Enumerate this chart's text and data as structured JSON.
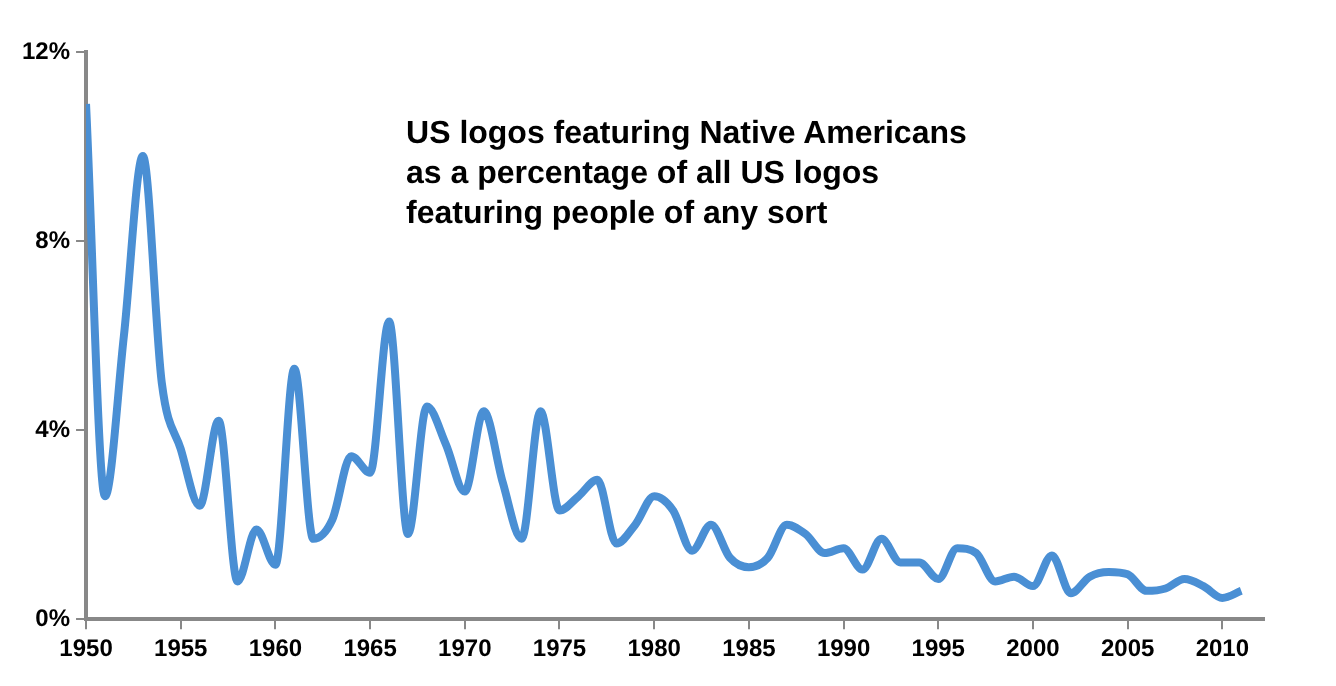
{
  "chart_data": {
    "type": "line",
    "title": "US logos featuring Native Americans\nas a percentage of all US logos\nfeaturing people of any sort",
    "x": [
      1950,
      1951,
      1952,
      1953,
      1954,
      1955,
      1956,
      1957,
      1958,
      1959,
      1960,
      1961,
      1962,
      1963,
      1964,
      1965,
      1966,
      1967,
      1968,
      1969,
      1970,
      1971,
      1972,
      1973,
      1974,
      1975,
      1976,
      1977,
      1978,
      1979,
      1980,
      1981,
      1982,
      1983,
      1984,
      1985,
      1986,
      1987,
      1988,
      1989,
      1990,
      1991,
      1992,
      1993,
      1994,
      1995,
      1996,
      1997,
      1998,
      1999,
      2000,
      2001,
      2002,
      2003,
      2004,
      2005,
      2006,
      2007,
      2008,
      2009,
      2010,
      2011
    ],
    "series": [
      {
        "color": "#4a8fd4",
        "values": [
          10.9,
          2.6,
          6.0,
          9.8,
          5.0,
          3.6,
          2.4,
          4.2,
          0.8,
          1.9,
          1.15,
          5.3,
          1.7,
          2.1,
          3.45,
          3.1,
          6.3,
          1.8,
          4.5,
          3.7,
          2.7,
          4.4,
          2.9,
          1.7,
          4.4,
          2.3,
          2.6,
          2.95,
          1.6,
          2.0,
          2.6,
          2.3,
          1.45,
          2.0,
          1.3,
          1.1,
          1.3,
          2.0,
          1.8,
          1.4,
          1.5,
          1.05,
          1.7,
          1.2,
          1.2,
          0.85,
          1.5,
          1.4,
          0.8,
          0.9,
          0.7,
          1.35,
          0.55,
          0.9,
          1.0,
          0.95,
          0.6,
          0.65,
          0.85,
          0.7,
          0.45,
          0.6
        ]
      }
    ],
    "xlim": [
      1950,
      2012.2
    ],
    "xticks": [
      1950,
      1955,
      1960,
      1965,
      1970,
      1975,
      1980,
      1985,
      1990,
      1995,
      2000,
      2005,
      2010
    ],
    "ylim": [
      0,
      12
    ],
    "yticks": [
      {
        "value": 0,
        "label": "0%"
      },
      {
        "value": 4,
        "label": "4%"
      },
      {
        "value": 8,
        "label": "8%"
      },
      {
        "value": 12,
        "label": "12%"
      }
    ],
    "grid": false,
    "legend": false,
    "marker": "none",
    "line_style": "solid"
  }
}
